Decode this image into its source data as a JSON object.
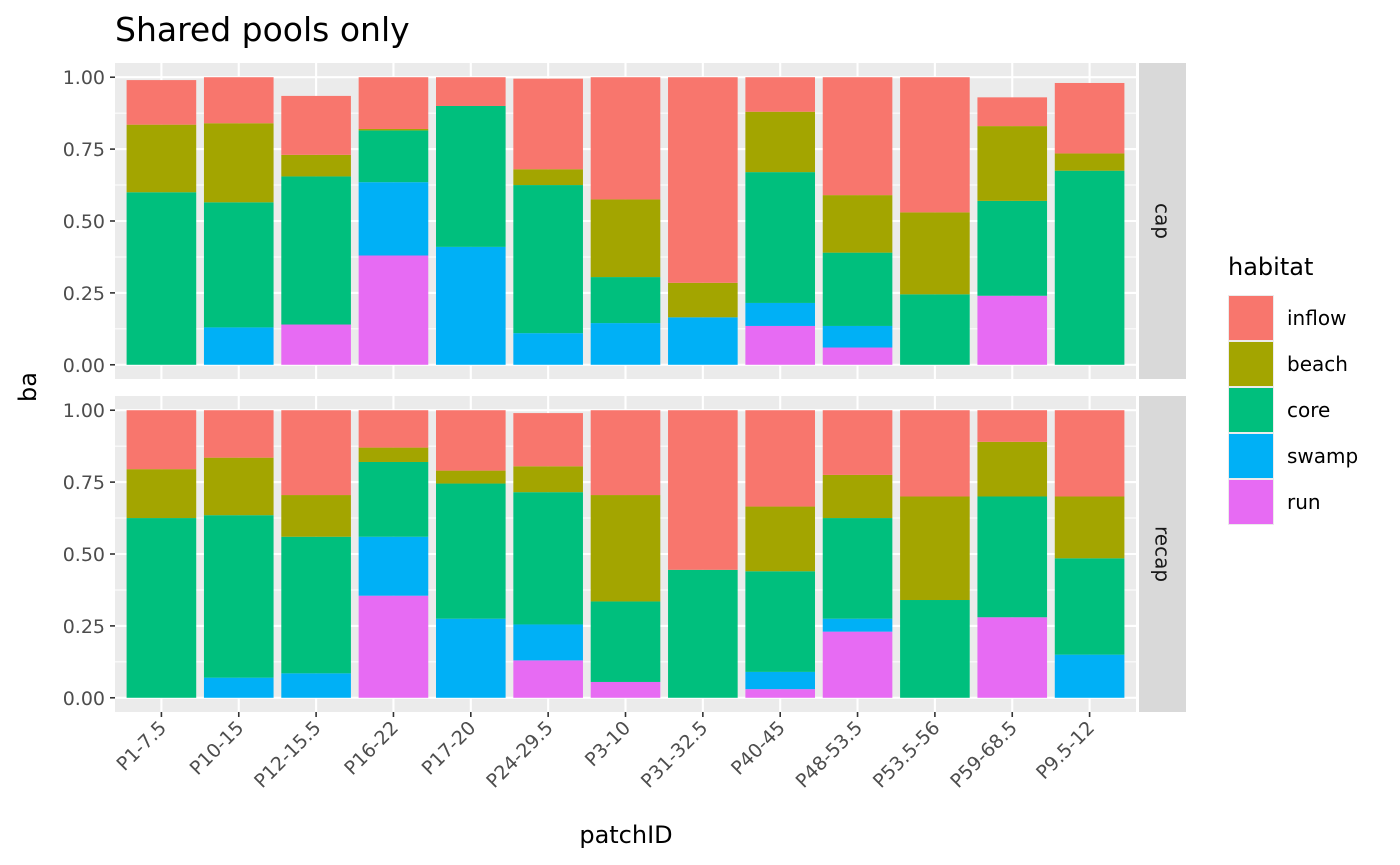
{
  "chart_data": {
    "type": "bar",
    "stacked": true,
    "title": "Shared pools only",
    "xlabel": "patchID",
    "ylabel": "ba",
    "ylim": [
      0,
      1.0
    ],
    "yticks": [
      "0.00",
      "0.25",
      "0.50",
      "0.75",
      "1.00"
    ],
    "ytick_values": [
      0,
      0.25,
      0.5,
      0.75,
      1.0
    ],
    "grid": true,
    "legend_placement": "right",
    "categories": [
      "P1-7.5",
      "P10-15",
      "P12-15.5",
      "P16-22",
      "P17-20",
      "P24-29.5",
      "P3-10",
      "P31-32.5",
      "P40-45",
      "P48-53.5",
      "P53.5-56",
      "P59-68.5",
      "P9.5-12"
    ],
    "legend": {
      "title": "habitat",
      "entries": [
        {
          "name": "inflow",
          "color": "#F8766D"
        },
        {
          "name": "beach",
          "color": "#A3A500"
        },
        {
          "name": "core",
          "color": "#00BF7D"
        },
        {
          "name": "swamp",
          "color": "#00B0F6"
        },
        {
          "name": "run",
          "color": "#E76BF3"
        }
      ]
    },
    "stack_order": [
      "run",
      "swamp",
      "core",
      "beach",
      "inflow"
    ],
    "panels": [
      {
        "label": "cap",
        "series": [
          {
            "name": "run",
            "values": [
              0,
              0,
              0.14,
              0.38,
              0,
              0,
              0,
              0,
              0.135,
              0.06,
              0,
              0.24,
              0
            ]
          },
          {
            "name": "swamp",
            "values": [
              0,
              0.13,
              0,
              0.255,
              0.41,
              0.11,
              0.145,
              0.165,
              0.08,
              0.075,
              0,
              0,
              0
            ]
          },
          {
            "name": "core",
            "values": [
              0.6,
              0.435,
              0.515,
              0.18,
              0.49,
              0.515,
              0.16,
              0,
              0.455,
              0.255,
              0.245,
              0.33,
              0.675
            ]
          },
          {
            "name": "beach",
            "values": [
              0.235,
              0.275,
              0.075,
              0.005,
              0,
              0.055,
              0.27,
              0.12,
              0.21,
              0.2,
              0.285,
              0.26,
              0.06
            ]
          },
          {
            "name": "inflow",
            "values": [
              0.155,
              0.16,
              0.205,
              0.18,
              0.1,
              0.315,
              0.425,
              0.715,
              0.12,
              0.41,
              0.47,
              0.1,
              0.245
            ]
          }
        ]
      },
      {
        "label": "recap",
        "series": [
          {
            "name": "run",
            "values": [
              0,
              0,
              0,
              0.355,
              0,
              0.13,
              0.055,
              0,
              0.03,
              0.23,
              0,
              0.28,
              0
            ]
          },
          {
            "name": "swamp",
            "values": [
              0,
              0.07,
              0.085,
              0.205,
              0.275,
              0.125,
              0,
              0,
              0.06,
              0.045,
              0,
              0,
              0.15
            ]
          },
          {
            "name": "core",
            "values": [
              0.625,
              0.565,
              0.475,
              0.26,
              0.47,
              0.46,
              0.28,
              0.445,
              0.35,
              0.35,
              0.34,
              0.42,
              0.335
            ]
          },
          {
            "name": "beach",
            "values": [
              0.17,
              0.2,
              0.145,
              0.05,
              0.045,
              0.09,
              0.37,
              0,
              0.225,
              0.15,
              0.36,
              0.19,
              0.215
            ]
          },
          {
            "name": "inflow",
            "values": [
              0.205,
              0.165,
              0.295,
              0.13,
              0.21,
              0.185,
              0.295,
              0.555,
              0.335,
              0.225,
              0.3,
              0.11,
              0.3
            ]
          }
        ]
      }
    ]
  }
}
